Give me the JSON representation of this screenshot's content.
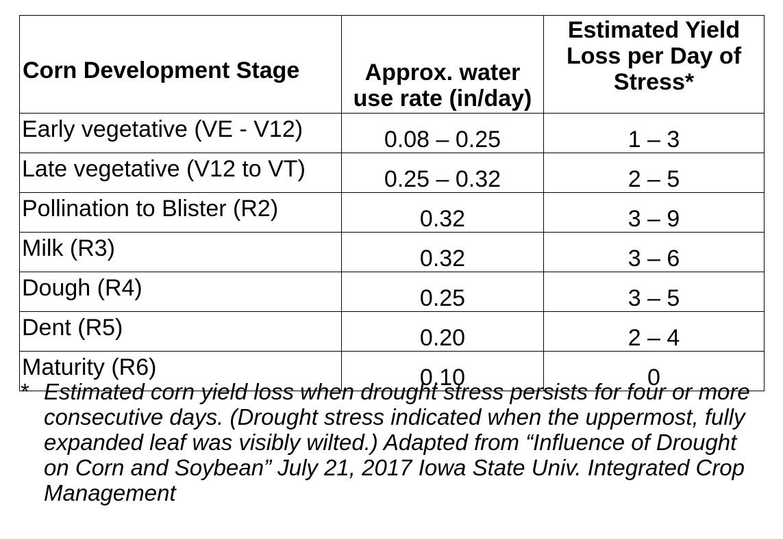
{
  "table": {
    "headers": {
      "stage": "Corn Development Stage",
      "rate_line1": "Approx. water",
      "rate_line2": "use rate (in/day)",
      "loss_line1": "Estimated Yield",
      "loss_line2": "Loss per Day of",
      "loss_line3": "Stress*"
    },
    "rows": [
      {
        "stage": "Early vegetative (VE - V12)",
        "rate": "0.08 – 0.25",
        "loss": "1 – 3"
      },
      {
        "stage": "Late vegetative (V12 to VT)",
        "rate": "0.25 – 0.32",
        "loss": "2 – 5"
      },
      {
        "stage": "Pollination to Blister (R2)",
        "rate": "0.32",
        "loss": "3 – 9"
      },
      {
        "stage": "Milk (R3)",
        "rate": "0.32",
        "loss": "3 – 6"
      },
      {
        "stage": "Dough (R4)",
        "rate": "0.25",
        "loss": "3 – 5"
      },
      {
        "stage": "Dent (R5)",
        "rate": "0.20",
        "loss": "2 – 4"
      },
      {
        "stage": "Maturity (R6)",
        "rate": "0.10",
        "loss": "0"
      }
    ]
  },
  "footnote": {
    "mark": "*",
    "text": "Estimated corn yield loss when drought stress persists for four or more consecutive days. (Drought stress indicated when the uppermost, fully expanded leaf was visibly wilted.) Adapted from “Influence of Drought on Corn and Soybean” July 21, 2017 Iowa State Univ. Integrated Crop Management"
  }
}
